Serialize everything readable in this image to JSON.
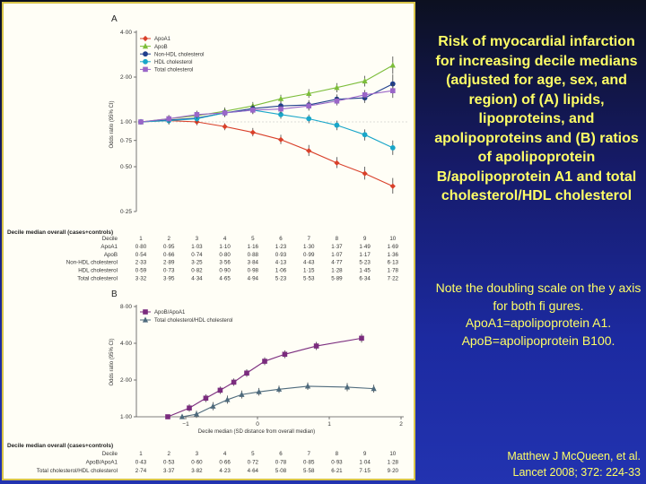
{
  "slide": {
    "title": "Risk of myocardial infarction for increasing decile medians (adjusted for age, sex, and region) of (A) lipids, lipoproteins, and apolipoproteins and (B) ratios of apolipoprotein B/apolipoprotein A1 and total cholesterol/HDL cholesterol",
    "note": "Note the doubling scale on the y axis for both fi gures. ApoA1=apolipoprotein A1. ApoB=apolipoprotein B100.",
    "citation_line1": "Matthew J McQueen, et al.",
    "citation_line2": "Lancet 2008;  372: 224-33"
  },
  "chart_data": [
    {
      "type": "line",
      "panel": "A",
      "ylabel": "Odds ratio (95% CI)",
      "yscale": "log2",
      "ylim": [
        0.25,
        4.0
      ],
      "yticks": [
        {
          "v": 4.0,
          "label": "4·00"
        },
        {
          "v": 2.0,
          "label": "2·00"
        },
        {
          "v": 1.0,
          "label": "1·00"
        },
        {
          "v": 0.75,
          "label": "0·75"
        },
        {
          "v": 0.5,
          "label": "0·50"
        },
        {
          "v": 0.25,
          "label": "0·25"
        }
      ],
      "colors": {
        "ApoA1": "#d9402a",
        "ApoB": "#7cbd3a",
        "Non-HDL cholesterol": "#1f3e8c",
        "HDL cholesterol": "#19a6c9",
        "Total cholesterol": "#9a66c8"
      },
      "series": [
        {
          "name": "ApoA1",
          "marker": "diamond",
          "x": [
            0.8,
            0.95,
            1.03,
            1.1,
            1.16,
            1.23,
            1.3,
            1.37,
            1.49,
            1.69
          ],
          "y": [
            1.0,
            1.02,
            1.0,
            0.93,
            0.85,
            0.76,
            0.64,
            0.53,
            0.45,
            0.37
          ],
          "lo": [
            null,
            0.97,
            0.95,
            0.88,
            0.8,
            0.71,
            0.59,
            0.49,
            0.41,
            0.33
          ],
          "hi": [
            null,
            1.07,
            1.05,
            0.98,
            0.91,
            0.82,
            0.7,
            0.58,
            0.5,
            0.42
          ]
        },
        {
          "name": "ApoB",
          "marker": "triangle",
          "x": [
            0.54,
            0.66,
            0.74,
            0.8,
            0.88,
            0.93,
            0.99,
            1.07,
            1.17,
            1.36
          ],
          "y": [
            1.0,
            1.05,
            1.1,
            1.18,
            1.28,
            1.43,
            1.55,
            1.7,
            1.88,
            2.4
          ],
          "lo": [
            null,
            0.99,
            1.04,
            1.11,
            1.2,
            1.34,
            1.45,
            1.58,
            1.73,
            2.1
          ],
          "hi": [
            null,
            1.11,
            1.17,
            1.25,
            1.36,
            1.52,
            1.66,
            1.82,
            2.04,
            2.75
          ]
        },
        {
          "name": "Non-HDL cholesterol",
          "marker": "circle",
          "x": [
            2.33,
            2.89,
            3.25,
            3.56,
            3.84,
            4.13,
            4.43,
            4.77,
            5.23,
            6.13
          ],
          "y": [
            1.0,
            1.03,
            1.06,
            1.15,
            1.23,
            1.28,
            1.3,
            1.42,
            1.45,
            1.8
          ],
          "lo": [
            null,
            0.97,
            1.0,
            1.08,
            1.15,
            1.19,
            1.21,
            1.32,
            1.34,
            1.55
          ],
          "hi": [
            null,
            1.09,
            1.12,
            1.22,
            1.31,
            1.37,
            1.4,
            1.53,
            1.57,
            2.08
          ]
        },
        {
          "name": "HDL cholesterol",
          "marker": "circle",
          "x": [
            0.59,
            0.73,
            0.82,
            0.9,
            0.98,
            1.06,
            1.15,
            1.28,
            1.45,
            1.78
          ],
          "y": [
            1.0,
            1.02,
            1.05,
            1.15,
            1.2,
            1.12,
            1.05,
            0.95,
            0.82,
            0.67
          ],
          "lo": [
            null,
            0.96,
            0.99,
            1.08,
            1.13,
            1.05,
            0.98,
            0.88,
            0.75,
            0.6
          ],
          "hi": [
            null,
            1.08,
            1.11,
            1.22,
            1.27,
            1.19,
            1.12,
            1.02,
            0.89,
            0.75
          ]
        },
        {
          "name": "Total cholesterol",
          "marker": "square",
          "x": [
            3.32,
            3.95,
            4.34,
            4.65,
            4.94,
            5.23,
            5.53,
            5.89,
            6.34,
            7.22
          ],
          "y": [
            1.0,
            1.05,
            1.12,
            1.15,
            1.2,
            1.22,
            1.28,
            1.38,
            1.52,
            1.62
          ],
          "lo": [
            null,
            0.99,
            1.05,
            1.08,
            1.13,
            1.14,
            1.19,
            1.29,
            1.4,
            1.45
          ],
          "hi": [
            null,
            1.11,
            1.19,
            1.22,
            1.27,
            1.3,
            1.37,
            1.47,
            1.64,
            1.82
          ]
        }
      ],
      "legend": [
        "ApoA1",
        "ApoB",
        "Non-HDL cholesterol",
        "HDL cholesterol",
        "Total cholesterol"
      ],
      "table": {
        "header": "Decile median overall (cases+controls)",
        "rows": [
          {
            "label": "Decile",
            "values": [
              "1",
              "2",
              "3",
              "4",
              "5",
              "6",
              "7",
              "8",
              "9",
              "10"
            ]
          },
          {
            "label": "ApoA1",
            "values": [
              "0·80",
              "0·95",
              "1·03",
              "1·10",
              "1·16",
              "1·23",
              "1·30",
              "1·37",
              "1·49",
              "1·69"
            ]
          },
          {
            "label": "ApoB",
            "values": [
              "0·54",
              "0·66",
              "0·74",
              "0·80",
              "0·88",
              "0·93",
              "0·99",
              "1·07",
              "1·17",
              "1·36"
            ]
          },
          {
            "label": "Non-HDL cholesterol",
            "values": [
              "2·33",
              "2·89",
              "3·25",
              "3·56",
              "3·84",
              "4·13",
              "4·43",
              "4·77",
              "5·23",
              "6·13"
            ]
          },
          {
            "label": "HDL cholesterol",
            "values": [
              "0·59",
              "0·73",
              "0·82",
              "0·90",
              "0·98",
              "1·06",
              "1·15",
              "1·28",
              "1·45",
              "1·78"
            ]
          },
          {
            "label": "Total cholesterol",
            "values": [
              "3·32",
              "3·95",
              "4·34",
              "4·65",
              "4·94",
              "5·23",
              "5·53",
              "5·89",
              "6·34",
              "7·22"
            ]
          }
        ]
      }
    },
    {
      "type": "line",
      "panel": "B",
      "xlabel": "Decile median (SD distance from overall median)",
      "ylabel": "Odds ratio (95% CI)",
      "yscale": "log2",
      "ylim": [
        1.0,
        8.0
      ],
      "xlim": [
        -1.3,
        2.0
      ],
      "xticks": [
        {
          "v": -1,
          "label": "−1"
        },
        {
          "v": 0,
          "label": "0"
        },
        {
          "v": 1,
          "label": "1"
        },
        {
          "v": 2,
          "label": "2"
        }
      ],
      "yticks": [
        {
          "v": 8.0,
          "label": "8·00"
        },
        {
          "v": 4.0,
          "label": "4·00"
        },
        {
          "v": 2.0,
          "label": "2·00"
        },
        {
          "v": 1.0,
          "label": "1·00"
        }
      ],
      "colors": {
        "ApoB/ApoA1": "#7b2c7e",
        "Total cholesterol/HDL cholesterol": "#4e6a7c"
      },
      "series": [
        {
          "name": "ApoB/ApoA1",
          "marker": "square",
          "x": [
            -1.25,
            -0.95,
            -0.72,
            -0.52,
            -0.33,
            -0.15,
            0.1,
            0.38,
            0.82,
            1.45
          ],
          "y": [
            1.0,
            1.18,
            1.42,
            1.65,
            1.92,
            2.28,
            2.85,
            3.25,
            3.8,
            4.4
          ],
          "lo": [
            null,
            1.1,
            1.32,
            1.54,
            1.79,
            2.12,
            2.65,
            3.02,
            3.52,
            4.05
          ],
          "hi": [
            null,
            1.27,
            1.53,
            1.77,
            2.06,
            2.45,
            3.07,
            3.5,
            4.1,
            4.78
          ]
        },
        {
          "name": "Total cholesterol/HDL cholesterol",
          "marker": "triangle",
          "x": [
            -1.05,
            -0.85,
            -0.62,
            -0.42,
            -0.22,
            0.02,
            0.3,
            0.7,
            1.25,
            1.62
          ],
          "y": [
            1.0,
            1.05,
            1.22,
            1.38,
            1.52,
            1.6,
            1.68,
            1.78,
            1.75,
            1.7
          ],
          "lo": [
            null,
            0.98,
            1.13,
            1.28,
            1.41,
            1.49,
            1.57,
            1.66,
            1.62,
            1.58
          ],
          "hi": [
            null,
            1.12,
            1.32,
            1.49,
            1.64,
            1.72,
            1.8,
            1.91,
            1.89,
            1.83
          ]
        }
      ],
      "legend": [
        "ApoB/ApoA1",
        "Total cholesterol/HDL cholesterol"
      ],
      "table": {
        "header": "Decile median overall (cases+controls)",
        "rows": [
          {
            "label": "Decile",
            "values": [
              "1",
              "2",
              "3",
              "4",
              "5",
              "6",
              "7",
              "8",
              "9",
              "10"
            ]
          },
          {
            "label": "ApoB/ApoA1",
            "values": [
              "0·43",
              "0·53",
              "0·60",
              "0·66",
              "0·72",
              "0·78",
              "0·85",
              "0·93",
              "1·04",
              "1·28"
            ]
          },
          {
            "label": "Total cholesterol/HDL cholesterol",
            "values": [
              "2·74",
              "3·37",
              "3·82",
              "4·23",
              "4·64",
              "5·08",
              "5·58",
              "6·21",
              "7·15",
              "9·20"
            ]
          }
        ]
      }
    }
  ]
}
